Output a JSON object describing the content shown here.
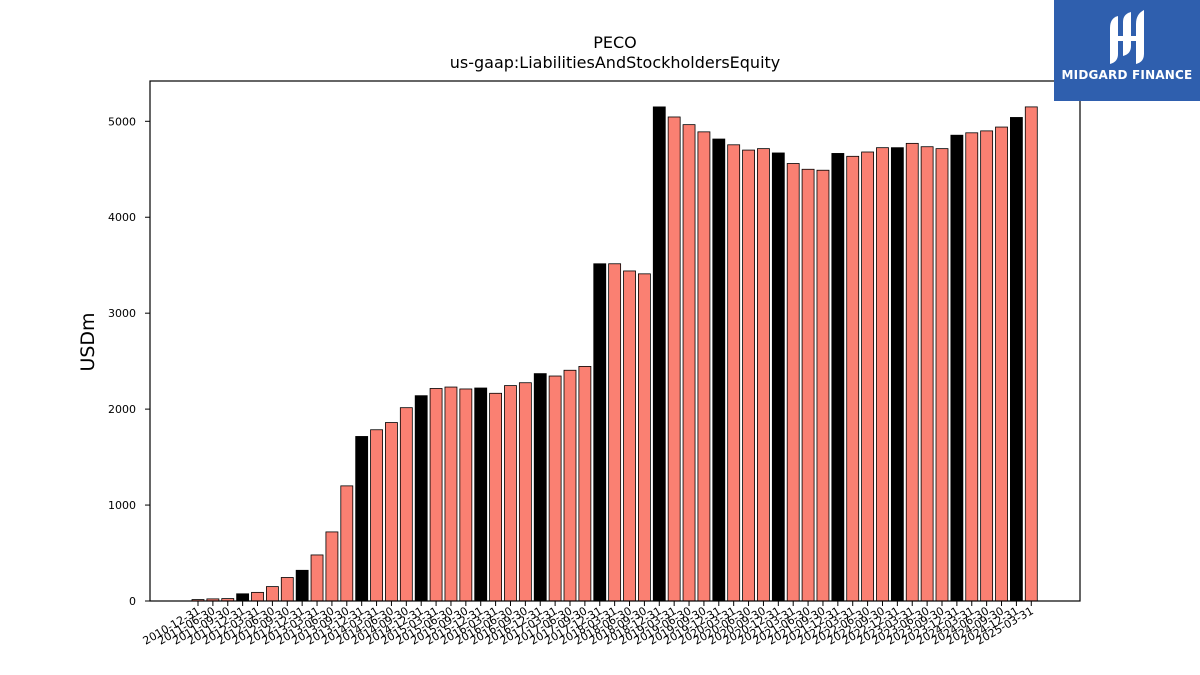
{
  "logo": {
    "text": "MIDGARD FINANCE",
    "bg_color": "#2f5fae",
    "icon": "midgard-logo-icon"
  },
  "chart_data": {
    "type": "bar",
    "title": "PECO",
    "subtitle": "us-gaap:LiabilitiesAndStockholdersEquity",
    "xlabel": "",
    "ylabel": "USDm",
    "ylim": [
      0,
      5420
    ],
    "yticks": [
      0,
      1000,
      2000,
      3000,
      4000,
      5000
    ],
    "grid": false,
    "legend": "none",
    "colors": {
      "annual": "#000000",
      "quarter": "#fa8072",
      "edge": "#000000"
    },
    "categories": [
      "2010-12-31",
      "2011-06-30",
      "2011-09-30",
      "2011-12-31",
      "2012-03-31",
      "2012-06-30",
      "2012-09-30",
      "2012-12-31",
      "2013-03-31",
      "2013-06-30",
      "2013-09-30",
      "2013-12-31",
      "2014-03-31",
      "2014-06-30",
      "2014-09-30",
      "2014-12-31",
      "2015-03-31",
      "2015-06-30",
      "2015-09-30",
      "2015-12-31",
      "2016-03-31",
      "2016-06-30",
      "2016-09-30",
      "2016-12-31",
      "2017-03-31",
      "2017-06-30",
      "2017-09-30",
      "2017-12-31",
      "2018-03-31",
      "2018-06-30",
      "2018-09-30",
      "2018-12-31",
      "2019-03-31",
      "2019-06-30",
      "2019-09-30",
      "2019-12-31",
      "2020-03-31",
      "2020-06-30",
      "2020-09-30",
      "2020-12-31",
      "2021-03-31",
      "2021-06-30",
      "2021-09-30",
      "2021-12-31",
      "2022-03-31",
      "2022-06-30",
      "2022-09-30",
      "2022-12-31",
      "2023-03-31",
      "2023-06-30",
      "2023-09-30",
      "2023-12-31",
      "2024-03-31",
      "2024-06-30",
      "2024-09-30",
      "2024-12-31",
      "2025-03-31"
    ],
    "tick_labels": [
      "2010-12-31",
      "2011-06-30",
      "2011-09-30",
      "2011-12-31",
      "2012-03-31",
      "2012-06-30",
      "2012-09-30",
      "2012-12-31",
      "2013-03-31",
      "2013-06-30",
      "2013-09-30",
      "2013-12-31",
      "2014-03-31",
      "2014-06-30",
      "2014-09-30",
      "2014-12-31",
      "2015-03-31",
      "2015-06-30",
      "2015-09-30",
      "2015-12-31",
      "2016-03-31",
      "2016-06-30",
      "2016-09-30",
      "2016-12-31",
      "2017-03-31",
      "2017-06-30",
      "2017-09-30",
      "2017-12-31",
      "2018-03-31",
      "2018-06-30",
      "2018-09-30",
      "2018-12-31",
      "2019-03-31",
      "2019-06-30",
      "2019-09-30",
      "2019-12-31",
      "2020-03-31",
      "2020-06-30",
      "2020-09-30",
      "2020-12-31",
      "2021-03-31",
      "2021-06-30",
      "2021-09-30",
      "2021-12-31",
      "2022-03-31",
      "2022-06-30",
      "2022-09-30",
      "2022-12-31",
      "2023-03-31",
      "2023-06-30",
      "2023-09-30",
      "2023-12-31",
      "2024-03-31",
      "2024-06-30",
      "2024-09-30",
      "2024-12-31",
      "2025-03-31"
    ],
    "values": [
      15,
      22,
      25,
      75,
      90,
      150,
      245,
      320,
      480,
      720,
      1200,
      1715,
      1785,
      1860,
      2015,
      2140,
      2215,
      2230,
      2210,
      2220,
      2165,
      2245,
      2275,
      2370,
      2345,
      2405,
      2445,
      3515,
      3515,
      3440,
      3410,
      5150,
      5045,
      4965,
      4890,
      4815,
      4755,
      4700,
      4715,
      4670,
      4560,
      4500,
      4490,
      4665,
      4635,
      4680,
      4725,
      4725,
      4770,
      4735,
      4715,
      4855,
      4880,
      4900,
      4940,
      5040,
      5150
    ],
    "highlight_annual": [
      false,
      false,
      false,
      true,
      false,
      false,
      false,
      true,
      false,
      false,
      false,
      true,
      false,
      false,
      false,
      true,
      false,
      false,
      false,
      true,
      false,
      false,
      false,
      true,
      false,
      false,
      false,
      true,
      false,
      false,
      false,
      true,
      false,
      false,
      false,
      true,
      false,
      false,
      false,
      true,
      false,
      false,
      false,
      true,
      false,
      false,
      false,
      true,
      false,
      false,
      false,
      true,
      false,
      false,
      false,
      true,
      false
    ]
  }
}
